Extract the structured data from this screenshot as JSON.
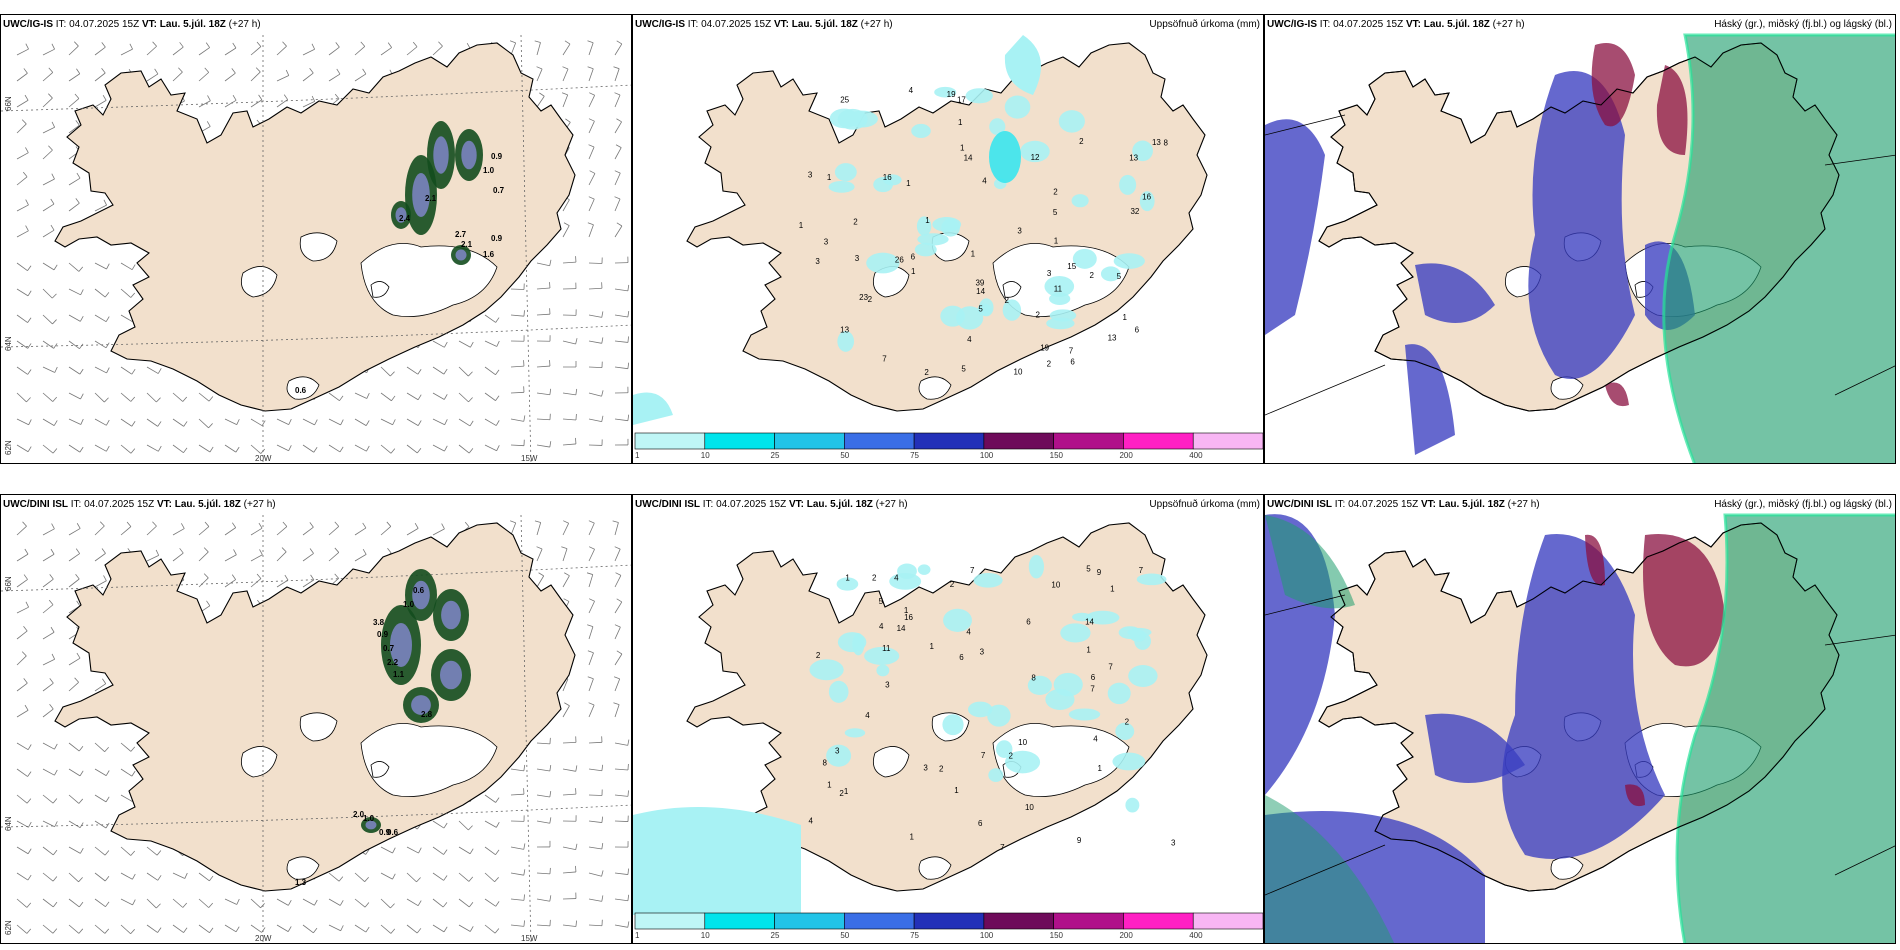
{
  "rows": [
    {
      "model": "UWC/IG-IS",
      "it_label": "IT:",
      "it_value": "04.07.2025 15Z",
      "vt_label": "VT:",
      "vt_value": "Lau. 5.júl. 18Z",
      "lead": "(+27 h)",
      "wind_labels": [
        "0.9",
        "1.0",
        "0.7",
        "2.1",
        "2.4",
        "2.7",
        "2.1",
        "1.6",
        "0.9",
        "0.6"
      ],
      "precip_labels": [
        "2",
        "4",
        "4",
        "2",
        "5",
        "8",
        "14",
        "13",
        "5",
        "10",
        "13",
        "7",
        "39",
        "19",
        "5",
        "14",
        "11",
        "13",
        "16",
        "26",
        "32",
        "25",
        "6",
        "6",
        "17",
        "19",
        "15",
        "23",
        "12",
        "4",
        "2",
        "7",
        "5",
        "1",
        "3",
        "16",
        "2",
        "6",
        "13",
        "3",
        "2",
        "1",
        "3",
        "3",
        "2",
        "1",
        "1",
        "1",
        "2",
        "1",
        "1",
        "2",
        "3",
        "1",
        "1",
        "2",
        "3",
        "1"
      ],
      "axis": {
        "lat_top": "66N",
        "lat_mid": "64N",
        "lat_bot": "62N",
        "lon_left": "20W",
        "lon_right": "15W"
      }
    },
    {
      "model": "UWC/DINI ISL",
      "it_label": "IT:",
      "it_value": "04.07.2025 15Z",
      "vt_label": "VT:",
      "vt_value": "Lau. 5.júl. 18Z",
      "lead": "(+27 h)",
      "wind_labels": [
        "0.6",
        "1.0",
        "3.8",
        "0.9",
        "0.7",
        "2.2",
        "1.1",
        "2.8",
        "2.0",
        "0.9",
        "1.0",
        "0.6",
        "1.3"
      ],
      "precip_labels": [
        "6",
        "2",
        "2",
        "4",
        "3",
        "2",
        "7",
        "6",
        "7",
        "9",
        "5",
        "7",
        "4",
        "14",
        "6",
        "5",
        "9",
        "10",
        "8",
        "7",
        "6",
        "4",
        "3",
        "7",
        "3",
        "8",
        "10",
        "14",
        "10",
        "11",
        "2",
        "1",
        "1",
        "1",
        "1",
        "3",
        "2",
        "7",
        "1",
        "1",
        "3",
        "4",
        "4",
        "1",
        "1",
        "2",
        "1",
        "4",
        "16",
        "2",
        "1"
      ],
      "axis": {
        "lat_top": "66N",
        "lat_mid": "64N",
        "lat_bot": "62N",
        "lon_left": "20W",
        "lon_right": "15W"
      }
    }
  ],
  "precip_title": "Uppsöfnuð úrkoma (mm)",
  "cloud_title": "Háský (gr.), miðský (fj.bl.) og lágský (bl.)",
  "colorbar": {
    "ticks": [
      "1",
      "10",
      "25",
      "50",
      "75",
      "100",
      "150",
      "200",
      "400"
    ],
    "colors": [
      "#bff6f6",
      "#00e4ec",
      "#22c4e8",
      "#3a6ee6",
      "#2330b8",
      "#6e0a5a",
      "#b0108a",
      "#ff20c4",
      "#f8b6f4"
    ]
  },
  "colors": {
    "land": "#f2e0cc",
    "coast": "#000000",
    "cloud_high": "#1f9e6e",
    "cloud_mid": "#8a1040",
    "cloud_low": "#3a3ec0",
    "green_fill": "#1b6e2a"
  }
}
